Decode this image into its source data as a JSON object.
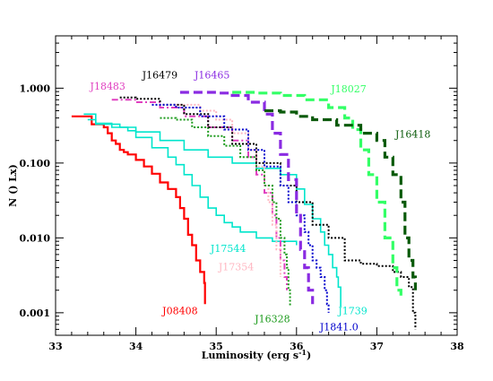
{
  "chart_data": {
    "type": "line",
    "title": "",
    "xlabel_main": "Luminosity (erg s",
    "xlabel_sup": "-1",
    "xlabel_close": ")",
    "ylabel": "N () Lx)",
    "x_scale": "linear",
    "y_scale": "log",
    "xlim": [
      33,
      38
    ],
    "ylim": [
      0.0005,
      5
    ],
    "x_ticks": [
      "33",
      "34",
      "35",
      "36",
      "37",
      "38"
    ],
    "y_ticks": [
      "0.001",
      "0.010",
      "0.100",
      "1.000"
    ],
    "grid": false,
    "legend": "none",
    "series": [
      {
        "name": "J08408",
        "color": "#ff0000",
        "dash": "solid",
        "width": 2.2,
        "x": [
          33.2,
          33.35,
          33.45,
          33.6,
          33.65,
          33.7,
          33.75,
          33.8,
          33.85,
          33.9,
          34.0,
          34.1,
          34.2,
          34.3,
          34.4,
          34.5,
          34.55,
          34.6,
          34.65,
          34.7,
          34.75,
          34.8,
          34.85,
          34.86
        ],
        "y": [
          0.42,
          0.42,
          0.33,
          0.3,
          0.25,
          0.2,
          0.18,
          0.15,
          0.14,
          0.13,
          0.11,
          0.09,
          0.072,
          0.055,
          0.045,
          0.035,
          0.025,
          0.018,
          0.011,
          0.008,
          0.005,
          0.0035,
          0.0025,
          0.0013
        ]
      },
      {
        "name": "J17544",
        "color": "#00e5cc",
        "dash": "solid",
        "width": 1.6,
        "x": [
          33.4,
          33.5,
          33.7,
          33.9,
          34.0,
          34.2,
          34.4,
          34.5,
          34.6,
          34.7,
          34.8,
          34.9,
          35.0,
          35.1,
          35.2,
          35.3,
          35.5,
          35.7,
          35.9,
          36.0
        ],
        "y": [
          0.38,
          0.34,
          0.3,
          0.27,
          0.22,
          0.16,
          0.12,
          0.095,
          0.07,
          0.05,
          0.035,
          0.025,
          0.02,
          0.016,
          0.014,
          0.012,
          0.01,
          0.009,
          0.009,
          0.008
        ]
      },
      {
        "name": "J1739",
        "color": "#00e5cc",
        "dash": "solid",
        "width": 1.6,
        "x": [
          33.35,
          33.5,
          33.8,
          34.0,
          34.3,
          34.6,
          34.9,
          35.2,
          35.5,
          35.8,
          36.0,
          36.1,
          36.2,
          36.3,
          36.35,
          36.4,
          36.45,
          36.5,
          36.52,
          36.55
        ],
        "y": [
          0.45,
          0.33,
          0.3,
          0.26,
          0.2,
          0.15,
          0.12,
          0.1,
          0.085,
          0.07,
          0.045,
          0.028,
          0.018,
          0.012,
          0.008,
          0.006,
          0.004,
          0.003,
          0.0022,
          0.0012
        ]
      },
      {
        "name": "J18483",
        "color": "#e040c0",
        "dash": "dashdot",
        "width": 2,
        "x": [
          33.7,
          34.0,
          34.3,
          34.6,
          34.9,
          35.2,
          35.4,
          35.5,
          35.6,
          35.7,
          35.75,
          35.8,
          35.85,
          35.88
        ],
        "y": [
          0.7,
          0.65,
          0.55,
          0.42,
          0.3,
          0.2,
          0.12,
          0.07,
          0.04,
          0.02,
          0.01,
          0.005,
          0.003,
          0.002
        ]
      },
      {
        "name": "J17354",
        "color": "#ffb6c1",
        "dash": "dotted",
        "width": 2,
        "x": [
          34.5,
          34.8,
          35.0,
          35.2,
          35.4,
          35.5,
          35.6,
          35.65,
          35.7,
          35.75,
          35.8
        ],
        "y": [
          0.6,
          0.5,
          0.38,
          0.25,
          0.15,
          0.09,
          0.05,
          0.03,
          0.015,
          0.007,
          0.003
        ]
      },
      {
        "name": "J16328",
        "color": "#1a9a1a",
        "dash": "dotted",
        "width": 2,
        "x": [
          34.3,
          34.5,
          34.7,
          34.9,
          35.1,
          35.3,
          35.5,
          35.6,
          35.7,
          35.75,
          35.8,
          35.85,
          35.88,
          35.9,
          35.92
        ],
        "y": [
          0.4,
          0.38,
          0.3,
          0.23,
          0.17,
          0.12,
          0.08,
          0.05,
          0.03,
          0.018,
          0.01,
          0.006,
          0.004,
          0.002,
          0.0012
        ]
      },
      {
        "name": "J16479",
        "color": "#000000",
        "dash": "dotted",
        "width": 2,
        "x": [
          33.8,
          34.0,
          34.3,
          34.6,
          34.9,
          35.2,
          35.5,
          35.8,
          36.0,
          36.2,
          36.4,
          36.6,
          36.8,
          37.0,
          37.2,
          37.3,
          37.4,
          37.45,
          37.48
        ],
        "y": [
          0.75,
          0.72,
          0.6,
          0.45,
          0.3,
          0.18,
          0.1,
          0.05,
          0.03,
          0.015,
          0.01,
          0.005,
          0.0045,
          0.0042,
          0.0035,
          0.003,
          0.0022,
          0.001,
          0.0006
        ]
      },
      {
        "name": "J1841.0",
        "color": "#0000cc",
        "dash": "dotted",
        "width": 2,
        "x": [
          34.2,
          34.5,
          34.8,
          35.1,
          35.4,
          35.6,
          35.8,
          35.9,
          36.0,
          36.1,
          36.15,
          36.2,
          36.25,
          36.3,
          36.35,
          36.38,
          36.4
        ],
        "y": [
          0.6,
          0.55,
          0.42,
          0.28,
          0.15,
          0.09,
          0.05,
          0.03,
          0.02,
          0.012,
          0.008,
          0.005,
          0.004,
          0.003,
          0.002,
          0.0013,
          0.001
        ]
      },
      {
        "name": "J16465",
        "color": "#8a2be2",
        "dash": "dashed",
        "width": 3.2,
        "x": [
          34.55,
          34.8,
          35.0,
          35.2,
          35.4,
          35.6,
          35.7,
          35.8,
          35.9,
          36.0,
          36.05,
          36.1,
          36.15,
          36.2
        ],
        "y": [
          0.88,
          0.88,
          0.86,
          0.8,
          0.65,
          0.45,
          0.25,
          0.13,
          0.06,
          0.02,
          0.007,
          0.004,
          0.002,
          0.0013
        ]
      },
      {
        "name": "J18027",
        "color": "#33ff66",
        "dash": "dashed",
        "width": 3.2,
        "x": [
          35.2,
          35.5,
          35.8,
          36.1,
          36.4,
          36.6,
          36.7,
          36.8,
          36.9,
          37.0,
          37.1,
          37.2,
          37.25,
          37.3
        ],
        "y": [
          0.88,
          0.86,
          0.8,
          0.7,
          0.55,
          0.4,
          0.28,
          0.15,
          0.07,
          0.03,
          0.01,
          0.004,
          0.002,
          0.0015
        ]
      },
      {
        "name": "J16418",
        "color": "#0a5a0a",
        "dash": "dashed",
        "width": 3.2,
        "x": [
          35.6,
          35.8,
          36.0,
          36.2,
          36.5,
          36.8,
          37.0,
          37.1,
          37.2,
          37.3,
          37.35,
          37.4,
          37.45,
          37.48
        ],
        "y": [
          0.5,
          0.48,
          0.42,
          0.38,
          0.32,
          0.25,
          0.2,
          0.12,
          0.07,
          0.03,
          0.01,
          0.005,
          0.003,
          0.002
        ]
      }
    ],
    "labels": [
      {
        "text": "J16479",
        "color": "#000000",
        "x": 34.3,
        "y": 1.35
      },
      {
        "text": "J16465",
        "color": "#8a2be2",
        "x": 34.95,
        "y": 1.35
      },
      {
        "text": "J18483",
        "color": "#e040c0",
        "x": 33.65,
        "y": 0.95
      },
      {
        "text": "J18027",
        "color": "#33ff66",
        "x": 36.65,
        "y": 0.88
      },
      {
        "text": "J16418",
        "color": "#0a5a0a",
        "x": 37.45,
        "y": 0.22
      },
      {
        "text": "J17544",
        "color": "#00e5cc",
        "x": 35.15,
        "y": 0.0065
      },
      {
        "text": "J17354",
        "color": "#ffb6c1",
        "x": 35.25,
        "y": 0.0037
      },
      {
        "text": "J08408",
        "color": "#ff0000",
        "x": 34.55,
        "y": 0.00095
      },
      {
        "text": "J16328",
        "color": "#1a9a1a",
        "x": 35.7,
        "y": 0.00075
      },
      {
        "text": "J1739",
        "color": "#00e5cc",
        "x": 36.7,
        "y": 0.00095
      },
      {
        "text": "J1841.0",
        "color": "#0000cc",
        "x": 36.53,
        "y": 0.00058
      }
    ]
  }
}
